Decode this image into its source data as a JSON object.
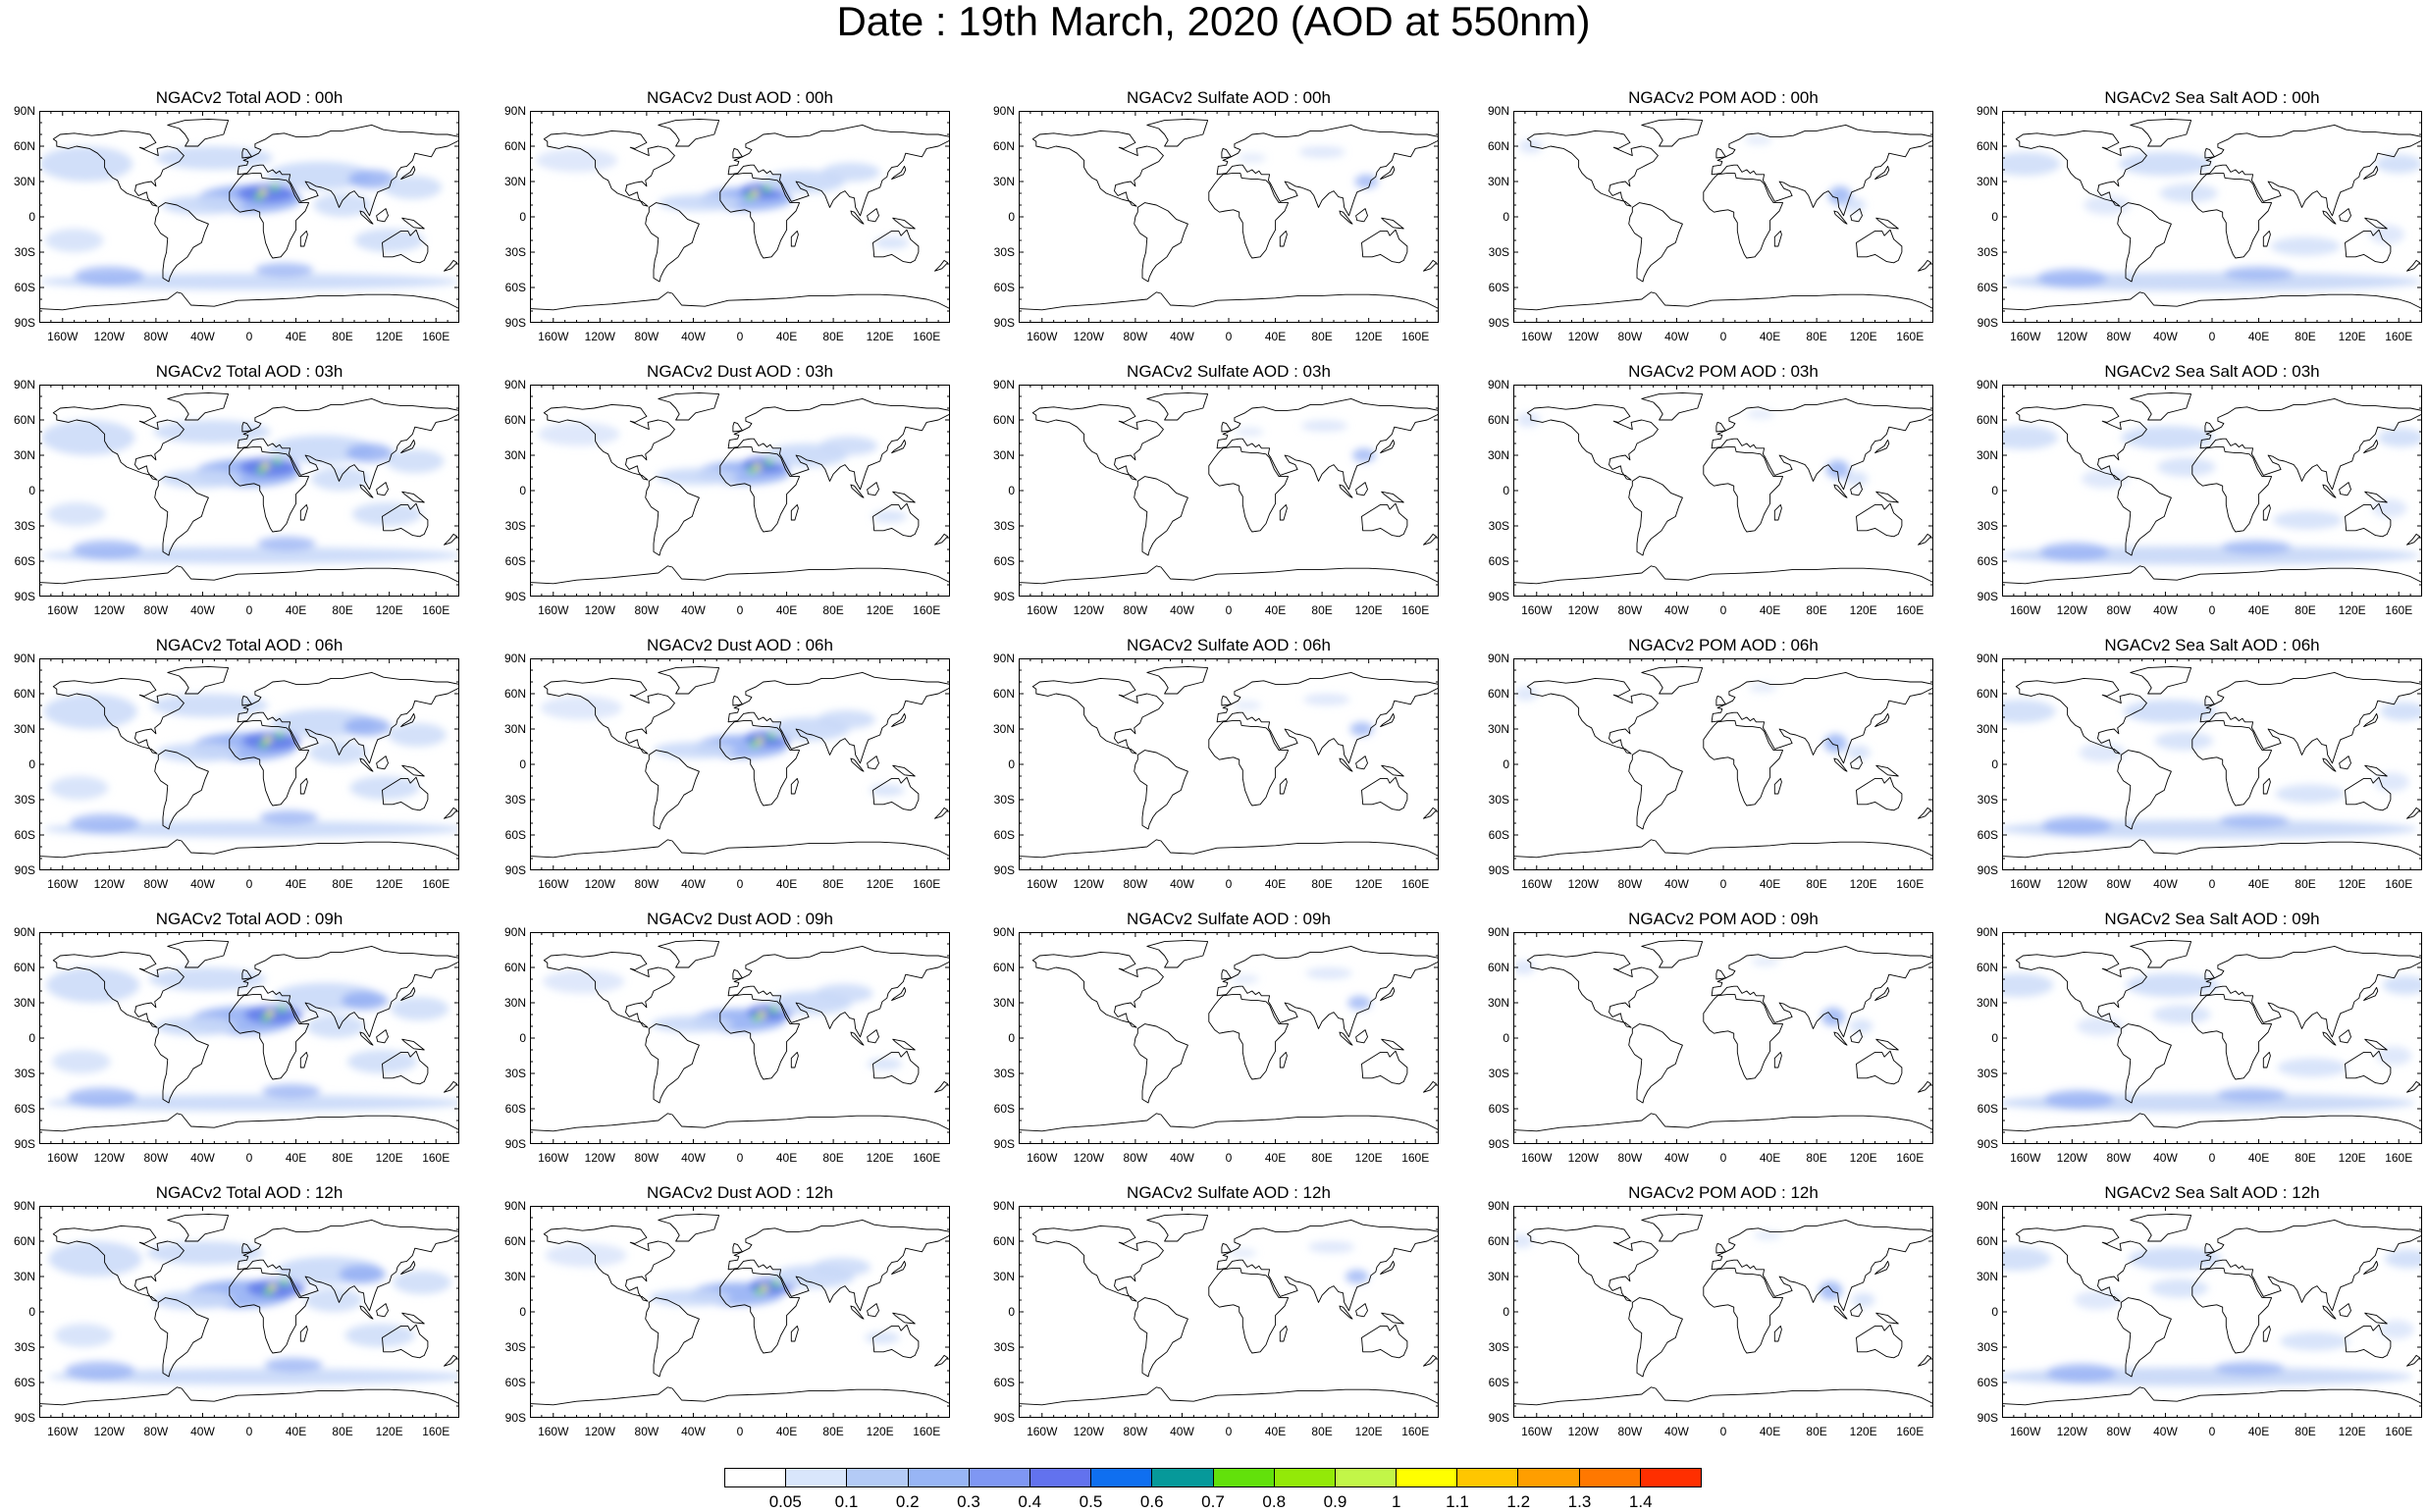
{
  "title": "Date : 19th March, 2020 (AOD at 550nm)",
  "rows": [
    [
      "NGACv2 Total AOD : 00h",
      "NGACv2 Dust AOD : 00h",
      "NGACv2 Sulfate AOD : 00h",
      "NGACv2 POM AOD : 00h",
      "NGACv2 Sea Salt AOD : 00h"
    ],
    [
      "NGACv2 Total AOD : 03h",
      "NGACv2 Dust AOD : 03h",
      "NGACv2 Sulfate AOD : 03h",
      "NGACv2 POM AOD : 03h",
      "NGACv2 Sea Salt AOD : 03h"
    ],
    [
      "NGACv2 Total AOD : 06h",
      "NGACv2 Dust AOD : 06h",
      "NGACv2 Sulfate AOD : 06h",
      "NGACv2 POM AOD : 06h",
      "NGACv2 Sea Salt AOD : 06h"
    ],
    [
      "NGACv2 Total AOD : 09h",
      "NGACv2 Dust AOD : 09h",
      "NGACv2 Sulfate AOD : 09h",
      "NGACv2 POM AOD : 09h",
      "NGACv2 Sea Salt  AOD : 09h"
    ],
    [
      "NGACv2 Total AOD  : 12h",
      "NGACv2 Dust AOD : 12h",
      "NGACv2 Sulfate AOD : 12h",
      "NGACv2 POM  AOD : 12h",
      "NGACv2 Sea Salt AOD : 12h"
    ]
  ],
  "axes": {
    "lat_labels": [
      "90N",
      "60N",
      "30N",
      "0",
      "30S",
      "60S",
      "90S"
    ],
    "lon_labels": [
      "160W",
      "120W",
      "80W",
      "40W",
      "0",
      "40E",
      "80E",
      "120E",
      "160E"
    ],
    "lat_values": [
      90,
      60,
      30,
      0,
      -30,
      -60,
      -90
    ],
    "lon_values": [
      -160,
      -120,
      -80,
      -40,
      0,
      40,
      80,
      120,
      160
    ]
  },
  "colorbar": {
    "labels": [
      "0.05",
      "0.1",
      "0.2",
      "0.3",
      "0.4",
      "0.5",
      "0.6",
      "0.7",
      "0.8",
      "0.9",
      "1",
      "1.1",
      "1.2",
      "1.3",
      "1.4"
    ],
    "colors": [
      "#ffffff",
      "#d9e6fb",
      "#b4cbf6",
      "#98b5f5",
      "#7f97f3",
      "#6272ee",
      "#0f6ff0",
      "#06999a",
      "#62e10b",
      "#93e908",
      "#c2f648",
      "#ffff00",
      "#ffc600",
      "#ff9e00",
      "#ff7800",
      "#ff2f00"
    ]
  },
  "species_colors": {
    "aerosol_light": "#c9d9f8",
    "aerosol_mid": "#8eabf3",
    "aerosol_dark": "#5b75e8",
    "dust_peak": "#62e10b",
    "dust_max": "#ffff00",
    "coastline": "#000000"
  }
}
